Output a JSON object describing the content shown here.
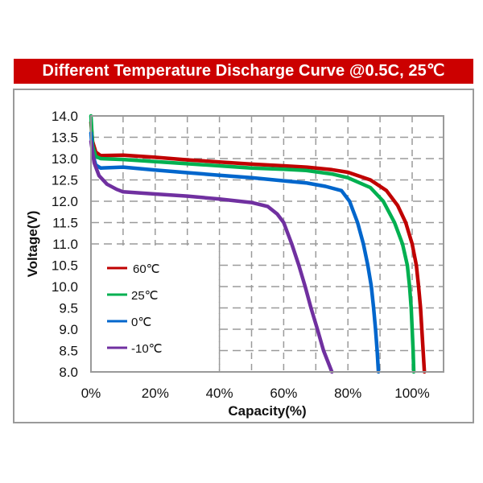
{
  "title": "Different Temperature Discharge Curve @0.5C, 25℃",
  "chart_data": {
    "type": "line",
    "title": "Different Temperature Discharge Curve @0.5C, 25℃",
    "xlabel": "Capacity(%)",
    "ylabel": "Voltage(V)",
    "xlim": [
      0,
      110
    ],
    "ylim": [
      8.0,
      14.0
    ],
    "x_ticks": [
      "0%",
      "20%",
      "40%",
      "60%",
      "80%",
      "100%"
    ],
    "y_ticks": [
      "14.0",
      "13.5",
      "13.0",
      "12.5",
      "12.0",
      "11.5",
      "11.0",
      "10.5",
      "10.0",
      "9.5",
      "9.0",
      "8.5",
      "8.0"
    ],
    "grid": true,
    "grid_style": "dashed",
    "legend_position": "lower-left",
    "series": [
      {
        "name": "60℃",
        "color": "#c00000",
        "points": [
          [
            0,
            13.85
          ],
          [
            0.5,
            13.4
          ],
          [
            1.5,
            13.15
          ],
          [
            3,
            13.07
          ],
          [
            10,
            13.08
          ],
          [
            20,
            13.03
          ],
          [
            30,
            12.97
          ],
          [
            40,
            12.92
          ],
          [
            50,
            12.87
          ],
          [
            60,
            12.83
          ],
          [
            67,
            12.8
          ],
          [
            75,
            12.74
          ],
          [
            80,
            12.68
          ],
          [
            87,
            12.5
          ],
          [
            92,
            12.25
          ],
          [
            95.5,
            11.9
          ],
          [
            98,
            11.5
          ],
          [
            100,
            11.0
          ],
          [
            101.3,
            10.5
          ],
          [
            102,
            10.0
          ],
          [
            102.6,
            9.5
          ],
          [
            103,
            9.0
          ],
          [
            103.4,
            8.5
          ],
          [
            103.8,
            8.0
          ]
        ]
      },
      {
        "name": "25℃",
        "color": "#00b050",
        "points": [
          [
            0,
            14.0
          ],
          [
            0.5,
            13.3
          ],
          [
            1.5,
            13.05
          ],
          [
            3,
            13.0
          ],
          [
            10,
            12.98
          ],
          [
            20,
            12.93
          ],
          [
            30,
            12.88
          ],
          [
            40,
            12.83
          ],
          [
            50,
            12.78
          ],
          [
            60,
            12.75
          ],
          [
            67,
            12.72
          ],
          [
            75,
            12.64
          ],
          [
            80,
            12.55
          ],
          [
            87,
            12.32
          ],
          [
            91,
            12.0
          ],
          [
            94.5,
            11.5
          ],
          [
            97,
            11.0
          ],
          [
            98.5,
            10.5
          ],
          [
            99.2,
            10.0
          ],
          [
            99.7,
            9.5
          ],
          [
            100,
            9.0
          ],
          [
            100.3,
            8.5
          ],
          [
            100.5,
            8.0
          ]
        ]
      },
      {
        "name": "0℃",
        "color": "#0066cc",
        "points": [
          [
            0,
            13.6
          ],
          [
            0.5,
            13.1
          ],
          [
            1.5,
            12.85
          ],
          [
            3,
            12.78
          ],
          [
            10,
            12.8
          ],
          [
            20,
            12.73
          ],
          [
            30,
            12.67
          ],
          [
            40,
            12.61
          ],
          [
            50,
            12.55
          ],
          [
            60,
            12.48
          ],
          [
            67,
            12.43
          ],
          [
            73,
            12.35
          ],
          [
            78,
            12.25
          ],
          [
            80.5,
            12.0
          ],
          [
            83,
            11.5
          ],
          [
            84.8,
            11.0
          ],
          [
            86.2,
            10.5
          ],
          [
            87.3,
            10.0
          ],
          [
            88,
            9.5
          ],
          [
            88.6,
            9.0
          ],
          [
            89.1,
            8.5
          ],
          [
            89.5,
            8.0
          ]
        ]
      },
      {
        "name": "-10℃",
        "color": "#7030a0",
        "points": [
          [
            0,
            13.4
          ],
          [
            1,
            12.9
          ],
          [
            2.5,
            12.6
          ],
          [
            5,
            12.4
          ],
          [
            8,
            12.28
          ],
          [
            10,
            12.22
          ],
          [
            20,
            12.17
          ],
          [
            30,
            12.12
          ],
          [
            40,
            12.05
          ],
          [
            50,
            11.97
          ],
          [
            55,
            11.88
          ],
          [
            58,
            11.7
          ],
          [
            60,
            11.5
          ],
          [
            62.5,
            11.0
          ],
          [
            64.7,
            10.5
          ],
          [
            66.7,
            10.0
          ],
          [
            68.5,
            9.5
          ],
          [
            70.5,
            9.0
          ],
          [
            72.4,
            8.5
          ],
          [
            75,
            8.0
          ]
        ]
      }
    ]
  },
  "axes": {
    "x_title": "Capacity(%)",
    "y_title": "Voltage(V)"
  },
  "legend": {
    "items": [
      {
        "label": "60℃",
        "color": "#c00000"
      },
      {
        "label": "25℃",
        "color": "#00b050"
      },
      {
        "label": "0℃",
        "color": "#0066cc"
      },
      {
        "label": "-10℃",
        "color": "#7030a0"
      }
    ]
  },
  "colors": {
    "banner": "#cc0000",
    "grid": "#9a9a9a",
    "frame": "#9a9a9a"
  }
}
